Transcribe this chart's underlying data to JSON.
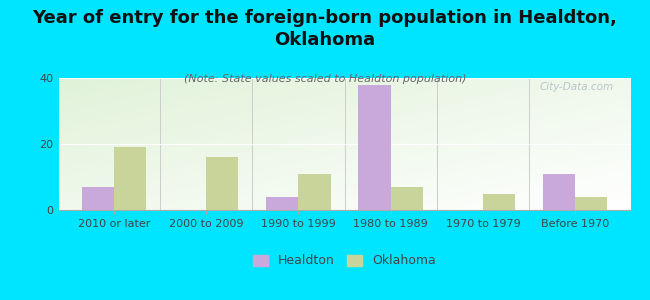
{
  "title": "Year of entry for the foreign-born population in Healdton,\nOklahoma",
  "subtitle": "(Note: State values scaled to Healdton population)",
  "categories": [
    "2010 or later",
    "2000 to 2009",
    "1990 to 1999",
    "1980 to 1989",
    "1970 to 1979",
    "Before 1970"
  ],
  "healdton_values": [
    7,
    0,
    4,
    38,
    0,
    11
  ],
  "oklahoma_values": [
    19,
    16,
    11,
    7,
    5,
    4
  ],
  "healdton_color": "#c9a8dc",
  "oklahoma_color": "#c8d49a",
  "bg_color": "#00e5ff",
  "ylim": [
    0,
    40
  ],
  "yticks": [
    0,
    20,
    40
  ],
  "bar_width": 0.35,
  "title_fontsize": 13,
  "subtitle_fontsize": 8,
  "tick_fontsize": 8,
  "legend_fontsize": 9,
  "watermark": "City-Data.com"
}
